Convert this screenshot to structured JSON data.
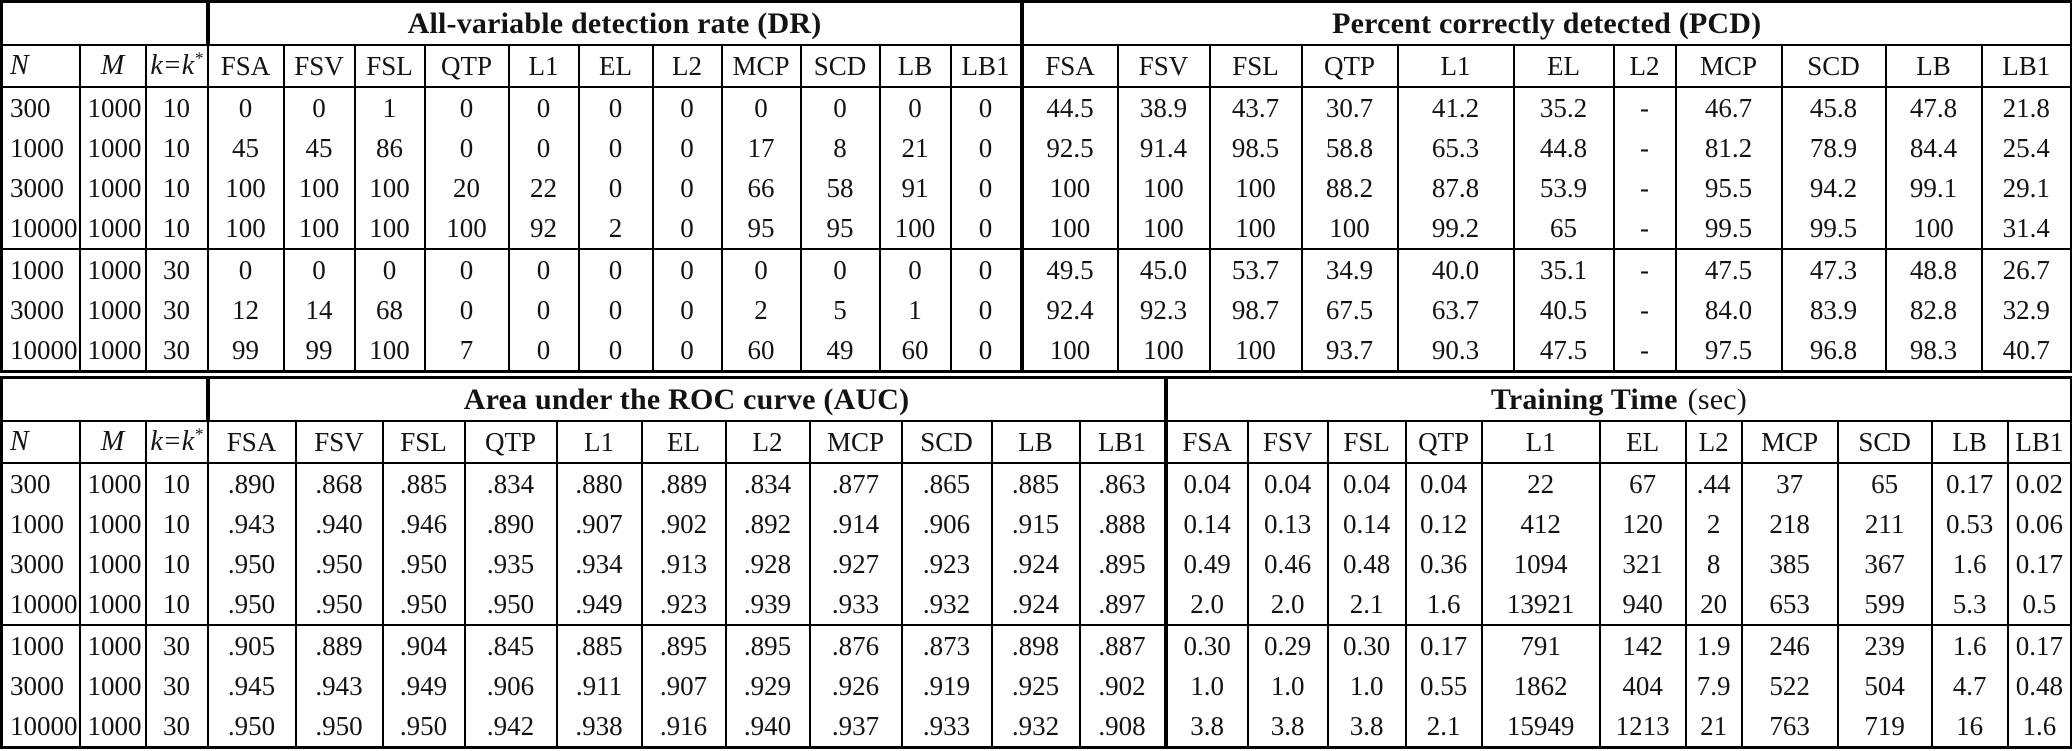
{
  "header": {
    "col_n": "N",
    "col_m": "M",
    "col_k_base": "k=k",
    "col_k_sup": "*",
    "methods": [
      "FSA",
      "FSV",
      "FSL",
      "QTP",
      "L1",
      "EL",
      "L2",
      "MCP",
      "SCD",
      "LB",
      "LB1"
    ]
  },
  "top_table": {
    "left_title": "All-variable detection rate (DR)",
    "right_title": "Percent correctly detected (PCD)",
    "groups": [
      {
        "rows": [
          {
            "n": "300",
            "m": "1000",
            "k": "10",
            "left": [
              "0",
              "0",
              "1",
              "0",
              "0",
              "0",
              "0",
              "0",
              "0",
              "0",
              "0"
            ],
            "right": [
              "44.5",
              "38.9",
              "43.7",
              "30.7",
              "41.2",
              "35.2",
              "-",
              "46.7",
              "45.8",
              "47.8",
              "21.8"
            ]
          },
          {
            "n": "1000",
            "m": "1000",
            "k": "10",
            "left": [
              "45",
              "45",
              "86",
              "0",
              "0",
              "0",
              "0",
              "17",
              "8",
              "21",
              "0"
            ],
            "right": [
              "92.5",
              "91.4",
              "98.5",
              "58.8",
              "65.3",
              "44.8",
              "-",
              "81.2",
              "78.9",
              "84.4",
              "25.4"
            ]
          },
          {
            "n": "3000",
            "m": "1000",
            "k": "10",
            "left": [
              "100",
              "100",
              "100",
              "20",
              "22",
              "0",
              "0",
              "66",
              "58",
              "91",
              "0"
            ],
            "right": [
              "100",
              "100",
              "100",
              "88.2",
              "87.8",
              "53.9",
              "-",
              "95.5",
              "94.2",
              "99.1",
              "29.1"
            ]
          },
          {
            "n": "10000",
            "m": "1000",
            "k": "10",
            "left": [
              "100",
              "100",
              "100",
              "100",
              "92",
              "2",
              "0",
              "95",
              "95",
              "100",
              "0"
            ],
            "right": [
              "100",
              "100",
              "100",
              "100",
              "99.2",
              "65",
              "-",
              "99.5",
              "99.5",
              "100",
              "31.4"
            ]
          }
        ]
      },
      {
        "rows": [
          {
            "n": "1000",
            "m": "1000",
            "k": "30",
            "left": [
              "0",
              "0",
              "0",
              "0",
              "0",
              "0",
              "0",
              "0",
              "0",
              "0",
              "0"
            ],
            "right": [
              "49.5",
              "45.0",
              "53.7",
              "34.9",
              "40.0",
              "35.1",
              "-",
              "47.5",
              "47.3",
              "48.8",
              "26.7"
            ]
          },
          {
            "n": "3000",
            "m": "1000",
            "k": "30",
            "left": [
              "12",
              "14",
              "68",
              "0",
              "0",
              "0",
              "0",
              "2",
              "5",
              "1",
              "0"
            ],
            "right": [
              "92.4",
              "92.3",
              "98.7",
              "67.5",
              "63.7",
              "40.5",
              "-",
              "84.0",
              "83.9",
              "82.8",
              "32.9"
            ]
          },
          {
            "n": "10000",
            "m": "1000",
            "k": "30",
            "left": [
              "99",
              "99",
              "100",
              "7",
              "0",
              "0",
              "0",
              "60",
              "49",
              "60",
              "0"
            ],
            "right": [
              "100",
              "100",
              "100",
              "93.7",
              "90.3",
              "47.5",
              "-",
              "97.5",
              "96.8",
              "98.3",
              "40.7"
            ]
          }
        ]
      }
    ]
  },
  "bottom_table": {
    "left_title": "Area under the ROC curve (AUC)",
    "right_title": "Training Time",
    "right_title_suffix": "(sec)",
    "groups": [
      {
        "rows": [
          {
            "n": "300",
            "m": "1000",
            "k": "10",
            "left": [
              ".890",
              ".868",
              ".885",
              ".834",
              ".880",
              ".889",
              ".834",
              ".877",
              ".865",
              ".885",
              ".863"
            ],
            "right": [
              "0.04",
              "0.04",
              "0.04",
              "0.04",
              "22",
              "67",
              ".44",
              "37",
              "65",
              "0.17",
              "0.02"
            ]
          },
          {
            "n": "1000",
            "m": "1000",
            "k": "10",
            "left": [
              ".943",
              ".940",
              ".946",
              ".890",
              ".907",
              ".902",
              ".892",
              ".914",
              ".906",
              ".915",
              ".888"
            ],
            "right": [
              "0.14",
              "0.13",
              "0.14",
              "0.12",
              "412",
              "120",
              "2",
              "218",
              "211",
              "0.53",
              "0.06"
            ]
          },
          {
            "n": "3000",
            "m": "1000",
            "k": "10",
            "left": [
              ".950",
              ".950",
              ".950",
              ".935",
              ".934",
              ".913",
              ".928",
              ".927",
              ".923",
              ".924",
              ".895"
            ],
            "right": [
              "0.49",
              "0.46",
              "0.48",
              "0.36",
              "1094",
              "321",
              "8",
              "385",
              "367",
              "1.6",
              "0.17"
            ]
          },
          {
            "n": "10000",
            "m": "1000",
            "k": "10",
            "left": [
              ".950",
              ".950",
              ".950",
              ".950",
              ".949",
              ".923",
              ".939",
              ".933",
              ".932",
              ".924",
              ".897"
            ],
            "right": [
              "2.0",
              "2.0",
              "2.1",
              "1.6",
              "13921",
              "940",
              "20",
              "653",
              "599",
              "5.3",
              "0.5"
            ]
          }
        ]
      },
      {
        "rows": [
          {
            "n": "1000",
            "m": "1000",
            "k": "30",
            "left": [
              ".905",
              ".889",
              ".904",
              ".845",
              ".885",
              ".895",
              ".895",
              ".876",
              ".873",
              ".898",
              ".887"
            ],
            "right": [
              "0.30",
              "0.29",
              "0.30",
              "0.17",
              "791",
              "142",
              "1.9",
              "246",
              "239",
              "1.6",
              "0.17"
            ]
          },
          {
            "n": "3000",
            "m": "1000",
            "k": "30",
            "left": [
              ".945",
              ".943",
              ".949",
              ".906",
              ".911",
              ".907",
              ".929",
              ".926",
              ".919",
              ".925",
              ".902"
            ],
            "right": [
              "1.0",
              "1.0",
              "1.0",
              "0.55",
              "1862",
              "404",
              "7.9",
              "522",
              "504",
              "4.7",
              "0.48"
            ]
          },
          {
            "n": "10000",
            "m": "1000",
            "k": "30",
            "left": [
              ".950",
              ".950",
              ".950",
              ".942",
              ".938",
              ".916",
              ".940",
              ".937",
              ".933",
              ".932",
              ".908"
            ],
            "right": [
              "3.8",
              "3.8",
              "3.8",
              "2.1",
              "15949",
              "1213",
              "21",
              "763",
              "719",
              "16",
              "1.6"
            ]
          }
        ]
      }
    ]
  }
}
